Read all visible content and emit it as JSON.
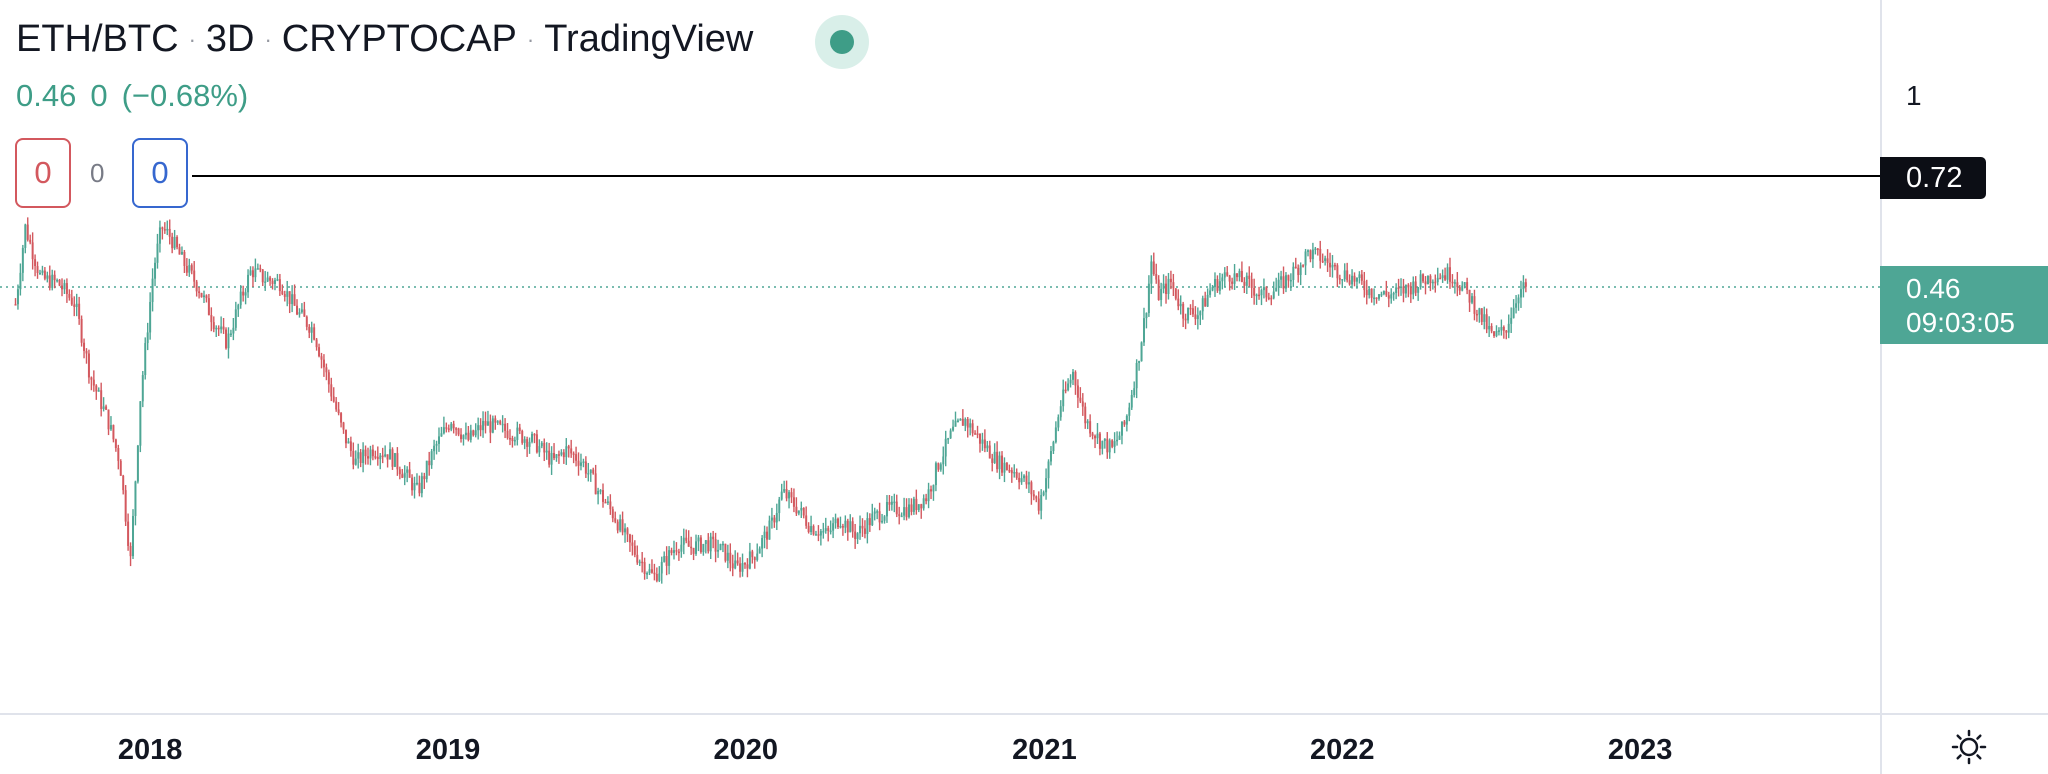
{
  "header": {
    "symbol": "ETH/BTC",
    "interval": "3D",
    "source": "CRYPTOCAP",
    "platform": "TradingView",
    "status_icon": "market-open-dot"
  },
  "legend": {
    "last_value": "0.46",
    "change": "0",
    "change_pct": "(−0.68%)"
  },
  "counters": {
    "left": "0",
    "middle": "0",
    "right": "0"
  },
  "price_scale": {
    "top_label": "1",
    "horizontal_line_label": "0.72",
    "current_price_label": "0.46",
    "countdown_label": "09:03:05"
  },
  "time_axis": {
    "labels": [
      "2018",
      "2019",
      "2020",
      "2021",
      "2022",
      "2023"
    ]
  },
  "colors": {
    "up": "#4ea695",
    "down": "#d3585e",
    "hline": "#000000",
    "accent_green": "#3e9d87"
  },
  "chart_data": {
    "type": "candlestick",
    "title": "ETH/BTC · 3D · CRYPTOCAP · TradingView",
    "xlabel": "",
    "ylabel": "",
    "x_range": [
      "2017-07-01",
      "2023-10-22"
    ],
    "hline": 0.72,
    "current_price": 0.46,
    "series": [
      {
        "date": "2017-07-20",
        "value": 0.42
      },
      {
        "date": "2017-08-01",
        "value": 0.6
      },
      {
        "date": "2017-08-20",
        "value": 0.48
      },
      {
        "date": "2017-09-10",
        "value": 0.47
      },
      {
        "date": "2017-10-01",
        "value": 0.42
      },
      {
        "date": "2017-10-20",
        "value": 0.25
      },
      {
        "date": "2017-11-10",
        "value": 0.15
      },
      {
        "date": "2017-11-25",
        "value": 0.05
      },
      {
        "date": "2017-12-08",
        "value": -0.18
      },
      {
        "date": "2017-12-20",
        "value": 0.2
      },
      {
        "date": "2018-01-05",
        "value": 0.5
      },
      {
        "date": "2018-01-15",
        "value": 0.6
      },
      {
        "date": "2018-01-25",
        "value": 0.58
      },
      {
        "date": "2018-02-10",
        "value": 0.52
      },
      {
        "date": "2018-03-01",
        "value": 0.46
      },
      {
        "date": "2018-03-20",
        "value": 0.38
      },
      {
        "date": "2018-04-05",
        "value": 0.33
      },
      {
        "date": "2018-04-20",
        "value": 0.42
      },
      {
        "date": "2018-05-05",
        "value": 0.5
      },
      {
        "date": "2018-05-20",
        "value": 0.48
      },
      {
        "date": "2018-06-10",
        "value": 0.47
      },
      {
        "date": "2018-07-01",
        "value": 0.4
      },
      {
        "date": "2018-07-20",
        "value": 0.36
      },
      {
        "date": "2018-08-10",
        "value": 0.22
      },
      {
        "date": "2018-08-25",
        "value": 0.12
      },
      {
        "date": "2018-09-10",
        "value": 0.05
      },
      {
        "date": "2018-10-01",
        "value": 0.08
      },
      {
        "date": "2018-10-20",
        "value": 0.07
      },
      {
        "date": "2018-11-10",
        "value": 0.02
      },
      {
        "date": "2018-11-25",
        "value": -0.02
      },
      {
        "date": "2018-12-15",
        "value": 0.08
      },
      {
        "date": "2019-01-05",
        "value": 0.15
      },
      {
        "date": "2019-01-25",
        "value": 0.1
      },
      {
        "date": "2019-02-15",
        "value": 0.14
      },
      {
        "date": "2019-03-01",
        "value": 0.13
      },
      {
        "date": "2019-03-20",
        "value": 0.12
      },
      {
        "date": "2019-04-15",
        "value": 0.1
      },
      {
        "date": "2019-05-10",
        "value": 0.05
      },
      {
        "date": "2019-05-25",
        "value": 0.08
      },
      {
        "date": "2019-06-15",
        "value": 0.05
      },
      {
        "date": "2019-07-05",
        "value": -0.02
      },
      {
        "date": "2019-07-25",
        "value": -0.08
      },
      {
        "date": "2019-08-10",
        "value": -0.14
      },
      {
        "date": "2019-08-25",
        "value": -0.18
      },
      {
        "date": "2019-09-10",
        "value": -0.22
      },
      {
        "date": "2019-09-25",
        "value": -0.18
      },
      {
        "date": "2019-10-10",
        "value": -0.14
      },
      {
        "date": "2019-10-25",
        "value": -0.15
      },
      {
        "date": "2019-11-15",
        "value": -0.14
      },
      {
        "date": "2019-12-05",
        "value": -0.16
      },
      {
        "date": "2019-12-20",
        "value": -0.2
      },
      {
        "date": "2020-01-10",
        "value": -0.17
      },
      {
        "date": "2020-02-01",
        "value": -0.1
      },
      {
        "date": "2020-02-15",
        "value": -0.02
      },
      {
        "date": "2020-03-05",
        "value": -0.06
      },
      {
        "date": "2020-03-20",
        "value": -0.1
      },
      {
        "date": "2020-04-10",
        "value": -0.12
      },
      {
        "date": "2020-04-25",
        "value": -0.08
      },
      {
        "date": "2020-05-15",
        "value": -0.12
      },
      {
        "date": "2020-06-05",
        "value": -0.08
      },
      {
        "date": "2020-06-25",
        "value": -0.06
      },
      {
        "date": "2020-07-20",
        "value": -0.06
      },
      {
        "date": "2020-08-10",
        "value": -0.03
      },
      {
        "date": "2020-08-25",
        "value": 0.05
      },
      {
        "date": "2020-09-10",
        "value": 0.12
      },
      {
        "date": "2020-09-25",
        "value": 0.15
      },
      {
        "date": "2020-10-15",
        "value": 0.1
      },
      {
        "date": "2020-11-05",
        "value": 0.05
      },
      {
        "date": "2020-11-25",
        "value": 0.03
      },
      {
        "date": "2020-12-10",
        "value": 0.0
      },
      {
        "date": "2020-12-25",
        "value": -0.05
      },
      {
        "date": "2021-01-05",
        "value": 0.03
      },
      {
        "date": "2021-01-20",
        "value": 0.18
      },
      {
        "date": "2021-02-05",
        "value": 0.26
      },
      {
        "date": "2021-02-20",
        "value": 0.15
      },
      {
        "date": "2021-03-10",
        "value": 0.1
      },
      {
        "date": "2021-03-25",
        "value": 0.08
      },
      {
        "date": "2021-04-10",
        "value": 0.14
      },
      {
        "date": "2021-04-25",
        "value": 0.28
      },
      {
        "date": "2021-05-05",
        "value": 0.4
      },
      {
        "date": "2021-05-12",
        "value": 0.52
      },
      {
        "date": "2021-05-20",
        "value": 0.44
      },
      {
        "date": "2021-06-05",
        "value": 0.47
      },
      {
        "date": "2021-06-20",
        "value": 0.4
      },
      {
        "date": "2021-07-10",
        "value": 0.4
      },
      {
        "date": "2021-07-25",
        "value": 0.46
      },
      {
        "date": "2021-08-15",
        "value": 0.49
      },
      {
        "date": "2021-09-05",
        "value": 0.47
      },
      {
        "date": "2021-09-25",
        "value": 0.44
      },
      {
        "date": "2021-10-15",
        "value": 0.46
      },
      {
        "date": "2021-11-05",
        "value": 0.5
      },
      {
        "date": "2021-11-20",
        "value": 0.54
      },
      {
        "date": "2021-12-05",
        "value": 0.53
      },
      {
        "date": "2021-12-25",
        "value": 0.5
      },
      {
        "date": "2022-01-15",
        "value": 0.48
      },
      {
        "date": "2022-02-05",
        "value": 0.45
      },
      {
        "date": "2022-02-25",
        "value": 0.44
      },
      {
        "date": "2022-03-15",
        "value": 0.45
      },
      {
        "date": "2022-04-05",
        "value": 0.47
      },
      {
        "date": "2022-04-25",
        "value": 0.49
      },
      {
        "date": "2022-05-15",
        "value": 0.49
      },
      {
        "date": "2022-06-05",
        "value": 0.44
      },
      {
        "date": "2022-06-20",
        "value": 0.39
      },
      {
        "date": "2022-07-05",
        "value": 0.34
      },
      {
        "date": "2022-07-20",
        "value": 0.36
      },
      {
        "date": "2022-08-05",
        "value": 0.45
      },
      {
        "date": "2022-08-15",
        "value": 0.46
      }
    ]
  }
}
